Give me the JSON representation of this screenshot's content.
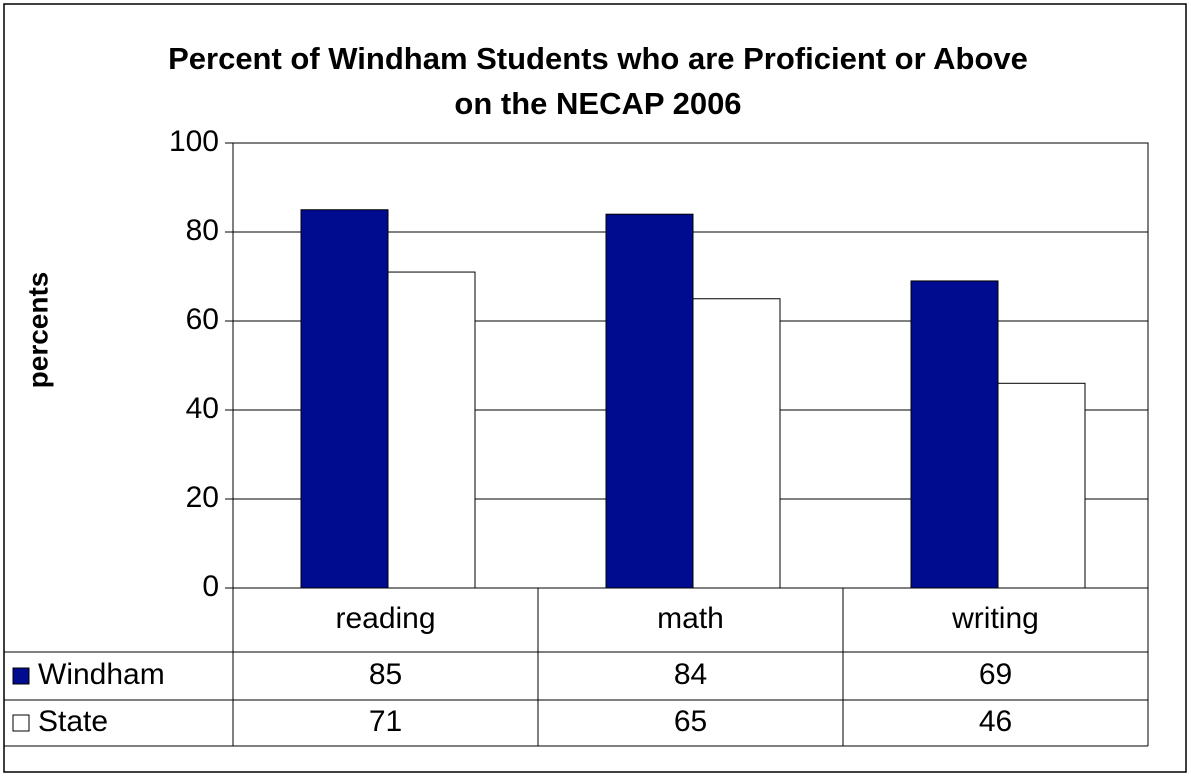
{
  "chart_data": {
    "type": "bar",
    "title": "Percent of Windham Students who are Proficient or Above on the NECAP 2006",
    "y_label": "percents",
    "categories": [
      "reading",
      "math",
      "writing"
    ],
    "series": [
      {
        "name": "Windham",
        "color": "#000c8f",
        "values": [
          85,
          84,
          69
        ]
      },
      {
        "name": "State",
        "color": "#ffffff",
        "values": [
          71,
          65,
          46
        ]
      }
    ],
    "ylim": [
      0,
      100
    ],
    "yticks": [
      0,
      20,
      40,
      60,
      80,
      100
    ],
    "grid": true,
    "data_table": true
  }
}
